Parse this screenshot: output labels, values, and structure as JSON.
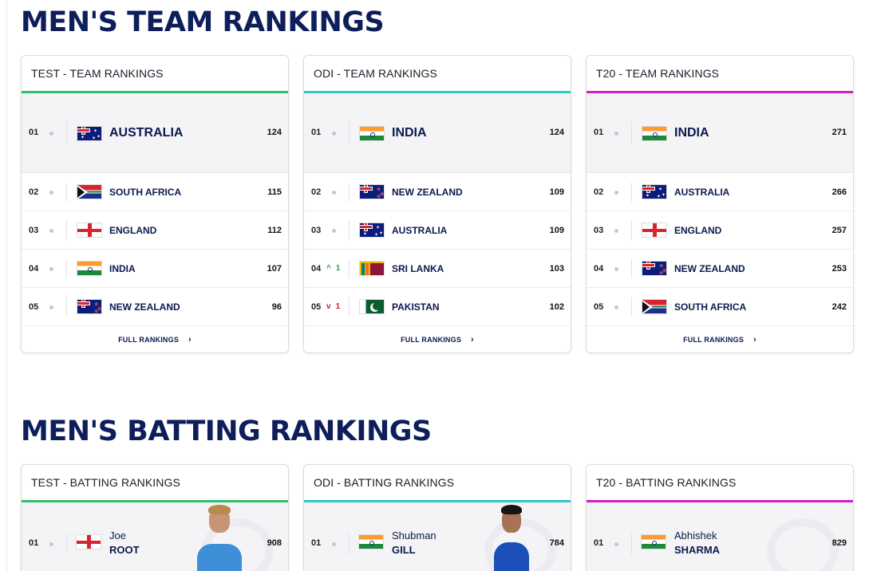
{
  "team_section": {
    "title": "MEN'S TEAM RANKINGS",
    "cards": [
      {
        "header": "TEST - TEAM RANKINGS",
        "accent": "#2cc06a",
        "rows": [
          {
            "pos": "01",
            "team": "AUSTRALIA",
            "rating": "124",
            "flag": "australia-flag"
          },
          {
            "pos": "02",
            "team": "SOUTH AFRICA",
            "rating": "115",
            "flag": "south-africa-flag"
          },
          {
            "pos": "03",
            "team": "ENGLAND",
            "rating": "112",
            "flag": "england-flag"
          },
          {
            "pos": "04",
            "team": "INDIA",
            "rating": "107",
            "flag": "india-flag"
          },
          {
            "pos": "05",
            "team": "NEW ZEALAND",
            "rating": "96",
            "flag": "new-zealand-flag"
          }
        ],
        "footer": "FULL RANKINGS"
      },
      {
        "header": "ODI - TEAM RANKINGS",
        "accent": "#2fc9c9",
        "rows": [
          {
            "pos": "01",
            "team": "INDIA",
            "rating": "124",
            "flag": "india-flag"
          },
          {
            "pos": "02",
            "team": "NEW ZEALAND",
            "rating": "109",
            "flag": "new-zealand-flag"
          },
          {
            "pos": "03",
            "team": "AUSTRALIA",
            "rating": "109",
            "flag": "australia-flag"
          },
          {
            "pos": "04",
            "team": "SRI LANKA",
            "rating": "103",
            "flag": "sri-lanka-flag",
            "move": "up",
            "move_icon": "^",
            "move_by": "1"
          },
          {
            "pos": "05",
            "team": "PAKISTAN",
            "rating": "102",
            "flag": "pakistan-flag",
            "move": "down",
            "move_icon": "v",
            "move_by": "1"
          }
        ],
        "footer": "FULL RANKINGS"
      },
      {
        "header": "T20 - TEAM RANKINGS",
        "accent": "#d21fc3",
        "rows": [
          {
            "pos": "01",
            "team": "INDIA",
            "rating": "271",
            "flag": "india-flag"
          },
          {
            "pos": "02",
            "team": "AUSTRALIA",
            "rating": "266",
            "flag": "australia-flag"
          },
          {
            "pos": "03",
            "team": "ENGLAND",
            "rating": "257",
            "flag": "england-flag"
          },
          {
            "pos": "04",
            "team": "NEW ZEALAND",
            "rating": "253",
            "flag": "new-zealand-flag"
          },
          {
            "pos": "05",
            "team": "SOUTH AFRICA",
            "rating": "242",
            "flag": "south-africa-flag"
          }
        ],
        "footer": "FULL RANKINGS"
      }
    ]
  },
  "batting_section": {
    "title": "MEN'S BATTING RANKINGS",
    "cards": [
      {
        "header": "TEST - BATTING RANKINGS",
        "accent": "#2cc06a",
        "pos": "01",
        "first": "Joe",
        "last": "ROOT",
        "rating": "908",
        "flag": "england-flag"
      },
      {
        "header": "ODI - BATTING RANKINGS",
        "accent": "#2fc9c9",
        "pos": "01",
        "first": "Shubman",
        "last": "GILL",
        "rating": "784",
        "flag": "india-flag"
      },
      {
        "header": "T20 - BATTING RANKINGS",
        "accent": "#d21fc3",
        "pos": "01",
        "first": "Abhishek",
        "last": "SHARMA",
        "rating": "829",
        "flag": "india-flag"
      }
    ]
  },
  "icons": {
    "chevron": "›"
  }
}
